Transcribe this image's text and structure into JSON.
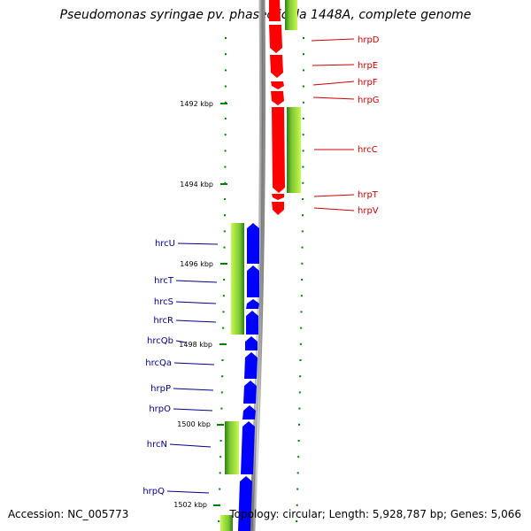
{
  "title": "Pseudomonas syringae pv. phaseolicola 1448A, complete genome",
  "accession": "Accession: NC_005773",
  "topology": "Topology: circular; Length: 5,928,787 bp; Genes: 5,066",
  "colors": {
    "forward_gene": "#ff0000",
    "reverse_gene": "#0000ff",
    "right_label": "#cc0000",
    "left_label": "#00008b",
    "tick": "#008000",
    "backbone": "#999999",
    "green_bar_light": "#b8f040",
    "green_bar_dark": "#3a8c1e"
  },
  "scale_labels": [
    {
      "text": "1492 kbp"
    },
    {
      "text": "1494 kbp"
    },
    {
      "text": "1496 kbp"
    },
    {
      "text": "1498 kbp"
    },
    {
      "text": "1500 kbp"
    },
    {
      "text": "1502 kbp"
    }
  ],
  "right_genes": [
    {
      "label": "hrpD"
    },
    {
      "label": "hrpE"
    },
    {
      "label": "hrpF"
    },
    {
      "label": "hrpG"
    },
    {
      "label": "hrcC"
    },
    {
      "label": "hrpT"
    },
    {
      "label": "hrpV"
    }
  ],
  "left_genes": [
    {
      "label": "hrcU"
    },
    {
      "label": "hrcT"
    },
    {
      "label": "hrcS"
    },
    {
      "label": "hrcR"
    },
    {
      "label": "hrcQb"
    },
    {
      "label": "hrcQa"
    },
    {
      "label": "hrpP"
    },
    {
      "label": "hrpO"
    },
    {
      "label": "hrcN"
    },
    {
      "label": "hrpQ"
    }
  ]
}
